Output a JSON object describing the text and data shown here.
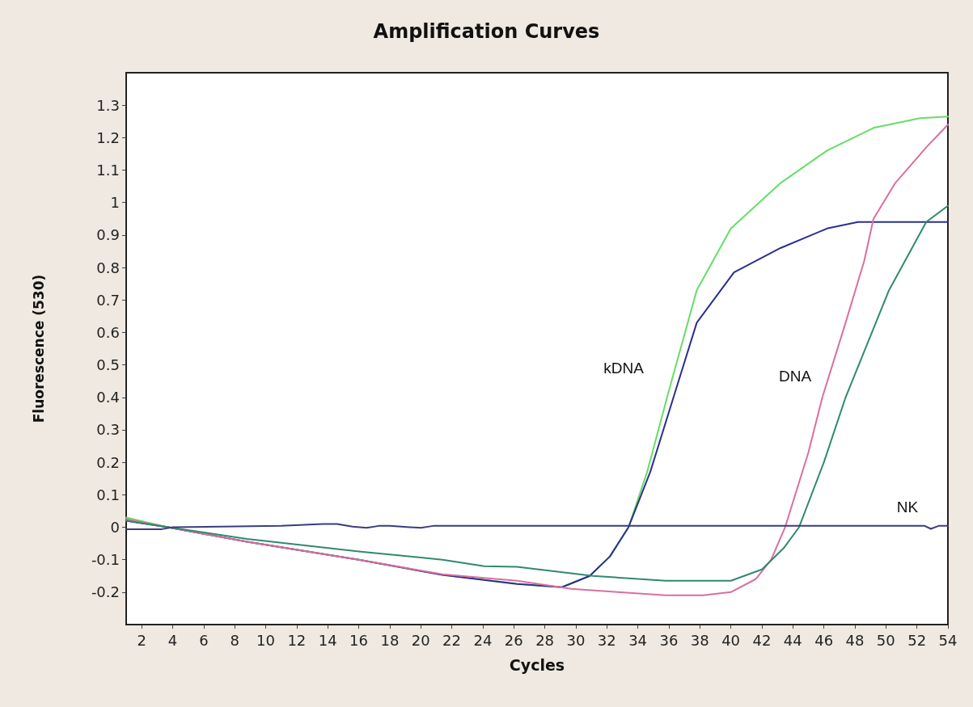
{
  "chart_data": {
    "type": "line",
    "title": "Amplification Curves",
    "xlabel": "Cycles",
    "ylabel": "Fluorescence (530)",
    "xlim": [
      1,
      54
    ],
    "ylim": [
      -0.3,
      1.4
    ],
    "xticks": [
      2,
      4,
      6,
      8,
      10,
      12,
      14,
      16,
      18,
      20,
      22,
      24,
      26,
      28,
      30,
      32,
      34,
      36,
      38,
      40,
      42,
      44,
      46,
      48,
      50,
      52,
      54
    ],
    "yticks": [
      -0.2,
      -0.1,
      0,
      0.1,
      0.2,
      0.3,
      0.4,
      0.5,
      0.6,
      0.7,
      0.8,
      0.9,
      1,
      1.1,
      1.2,
      1.3
    ],
    "grid": false,
    "marker": "none",
    "line_style": "solid",
    "series": [
      {
        "color": "#66dd66",
        "x": [
          1,
          3.7,
          8.8,
          16,
          21.4,
          26.2,
          29.1,
          30.9,
          32.2,
          33.4,
          34.6,
          36,
          37.8,
          40,
          43.2,
          46.2,
          49.2,
          52.2,
          54
        ],
        "values": [
          0.03,
          0,
          -0.045,
          -0.1,
          -0.147,
          -0.174,
          -0.185,
          -0.15,
          -0.09,
          0,
          0.17,
          0.42,
          0.73,
          0.92,
          1.06,
          1.16,
          1.23,
          1.26,
          1.265
        ]
      },
      {
        "color": "#2b2f8f",
        "x": [
          1,
          3.7,
          8.8,
          16,
          21.4,
          26.2,
          29.1,
          30.9,
          32.2,
          33.4,
          34.8,
          36.3,
          37.8,
          40.2,
          43.2,
          46.2,
          48.2,
          54
        ],
        "values": [
          0.02,
          0,
          -0.045,
          -0.1,
          -0.147,
          -0.175,
          -0.185,
          -0.15,
          -0.09,
          0,
          0.17,
          0.4,
          0.63,
          0.785,
          0.86,
          0.92,
          0.94,
          0.94
        ]
      },
      {
        "color": "#d96fa0",
        "x": [
          1,
          3.7,
          8.8,
          16,
          21.4,
          26.2,
          29.7,
          32.7,
          35.8,
          38.2,
          40,
          41.6,
          42.6,
          43.5,
          45,
          45.9,
          47.4,
          48.6,
          49.2,
          50.6,
          52.6,
          54
        ],
        "values": [
          0.025,
          0,
          -0.045,
          -0.1,
          -0.145,
          -0.165,
          -0.19,
          -0.2,
          -0.21,
          -0.21,
          -0.2,
          -0.16,
          -0.1,
          0,
          0.23,
          0.4,
          0.63,
          0.82,
          0.95,
          1.06,
          1.17,
          1.24
        ]
      },
      {
        "color": "#2f8a6f",
        "x": [
          1,
          3.7,
          8.8,
          16,
          21.4,
          24.1,
          26.2,
          31.1,
          35.8,
          40,
          42,
          43.4,
          44.4,
          46,
          47.4,
          50.2,
          52.6,
          54
        ],
        "values": [
          0.02,
          0,
          -0.036,
          -0.075,
          -0.1,
          -0.12,
          -0.122,
          -0.15,
          -0.165,
          -0.165,
          -0.13,
          -0.065,
          0,
          0.2,
          0.4,
          0.73,
          0.94,
          0.99
        ]
      },
      {
        "color": "#3b3b80",
        "x": [
          1,
          3.3,
          4,
          11,
          13.7,
          14.6,
          15.6,
          16.5,
          17.3,
          18,
          20,
          20.8,
          21.5,
          30,
          40,
          52.5,
          52.9,
          53.4,
          54
        ],
        "values": [
          -0.006,
          -0.006,
          0,
          0.004,
          0.01,
          0.01,
          0.002,
          -0.002,
          0.004,
          0.004,
          -0.002,
          0.004,
          0.004,
          0.004,
          0.004,
          0.004,
          -0.005,
          0.004,
          0.004
        ]
      }
    ],
    "annotations": [
      "kDNA",
      "DNA",
      "NK"
    ]
  }
}
